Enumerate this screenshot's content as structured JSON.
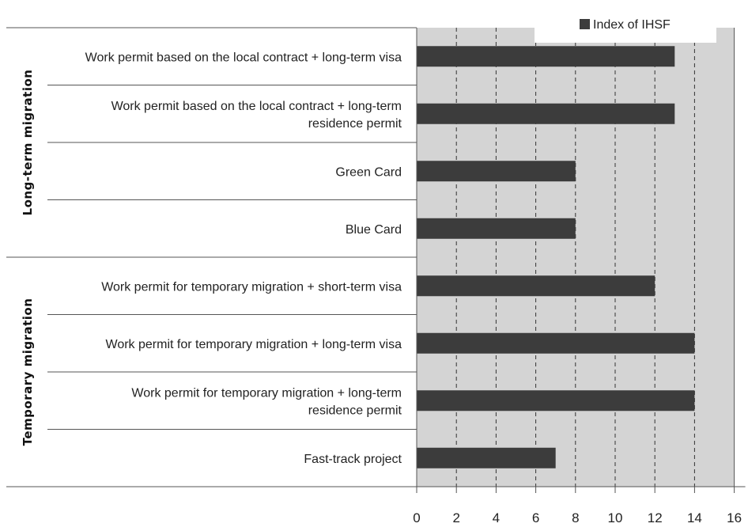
{
  "chart_data": {
    "type": "bar",
    "orientation": "horizontal",
    "title": "",
    "xlabel": "",
    "ylabel": "",
    "xlim": [
      0,
      16
    ],
    "xticks": [
      0,
      2,
      4,
      6,
      8,
      10,
      12,
      14,
      16
    ],
    "grid": "vertical dashed",
    "legend": {
      "position": "top-right",
      "entries": [
        "Index of IHSF"
      ]
    },
    "groups": [
      {
        "name": "Long-term migration",
        "categories": [
          0,
          1,
          2,
          3
        ]
      },
      {
        "name": "Temporary migration",
        "categories": [
          4,
          5,
          6,
          7
        ]
      }
    ],
    "categories": [
      [
        "Work permit based on the local contract + long-term visa"
      ],
      [
        "Work permit based on the local contract + long-term",
        "residence permit"
      ],
      [
        "Green Card"
      ],
      [
        "Blue Card"
      ],
      [
        "Work permit for temporary migration + short-term visa"
      ],
      [
        "Work permit for temporary migration + long-term visa"
      ],
      [
        "Work permit for temporary migration + long-term",
        "residence permit"
      ],
      [
        "Fast-track project"
      ]
    ],
    "series": [
      {
        "name": "Index of IHSF",
        "values": [
          13,
          13,
          8,
          8,
          12,
          14,
          14,
          7
        ]
      }
    ],
    "colors": {
      "bar": "#3c3c3c",
      "plot_bg": "#d4d4d4",
      "grid": "#333333",
      "border": "#555555"
    }
  }
}
